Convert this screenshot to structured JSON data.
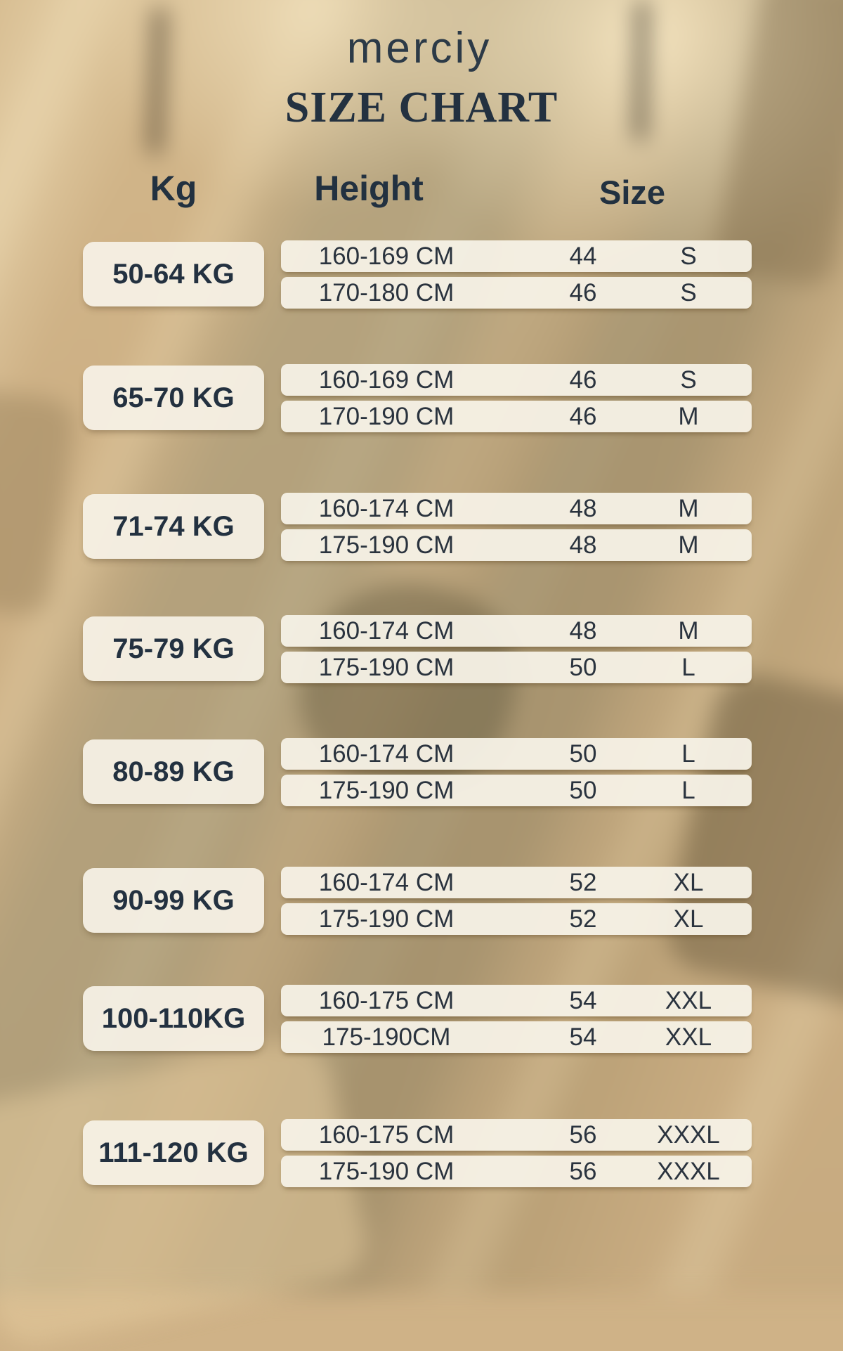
{
  "page": {
    "brand": "merciy",
    "title": "SIZE CHART"
  },
  "table": {
    "headers": {
      "kg": "Kg",
      "height": "Height",
      "size": "Size"
    },
    "groups": [
      {
        "kg": "50-64 KG",
        "rows": [
          {
            "height": "160-169 CM",
            "size_number": "44",
            "size_letter": "S"
          },
          {
            "height": "170-180 CM",
            "size_number": "46",
            "size_letter": "S"
          }
        ]
      },
      {
        "kg": "65-70 KG",
        "rows": [
          {
            "height": "160-169 CM",
            "size_number": "46",
            "size_letter": "S"
          },
          {
            "height": "170-190 CM",
            "size_number": "46",
            "size_letter": "M"
          }
        ]
      },
      {
        "kg": "71-74 KG",
        "rows": [
          {
            "height": "160-174 CM",
            "size_number": "48",
            "size_letter": "M"
          },
          {
            "height": "175-190 CM",
            "size_number": "48",
            "size_letter": "M"
          }
        ]
      },
      {
        "kg": "75-79 KG",
        "rows": [
          {
            "height": "160-174 CM",
            "size_number": "48",
            "size_letter": "M"
          },
          {
            "height": "175-190 CM",
            "size_number": "50",
            "size_letter": "L"
          }
        ]
      },
      {
        "kg": "80-89 KG",
        "rows": [
          {
            "height": "160-174 CM",
            "size_number": "50",
            "size_letter": "L"
          },
          {
            "height": "175-190 CM",
            "size_number": "50",
            "size_letter": "L"
          }
        ]
      },
      {
        "kg": "90-99 KG",
        "rows": [
          {
            "height": "160-174 CM",
            "size_number": "52",
            "size_letter": "XL"
          },
          {
            "height": "175-190 CM",
            "size_number": "52",
            "size_letter": "XL"
          }
        ]
      },
      {
        "kg": "100-110KG",
        "rows": [
          {
            "height": "160-175 CM",
            "size_number": "54",
            "size_letter": "XXL"
          },
          {
            "height": "175-190CM",
            "size_number": "54",
            "size_letter": "XXL"
          }
        ]
      },
      {
        "kg": "111-120 KG",
        "rows": [
          {
            "height": "160-175 CM",
            "size_number": "56",
            "size_letter": "XXXL"
          },
          {
            "height": "175-190 CM",
            "size_number": "56",
            "size_letter": "XXXL"
          }
        ]
      }
    ]
  },
  "colors": {
    "text_dark": "#26323F",
    "panel_cream": "#F4EFE2",
    "background_tan": "#CFB287"
  },
  "chart_data": {
    "type": "table",
    "title": "SIZE CHART",
    "brand": "merciy",
    "columns": [
      "Kg",
      "Height",
      "Size"
    ],
    "rows": [
      [
        "50-64 KG",
        "160-169 CM",
        44,
        "S"
      ],
      [
        "50-64 KG",
        "170-180 CM",
        46,
        "S"
      ],
      [
        "65-70 KG",
        "160-169 CM",
        46,
        "S"
      ],
      [
        "65-70 KG",
        "170-190 CM",
        46,
        "M"
      ],
      [
        "71-74 KG",
        "160-174 CM",
        48,
        "M"
      ],
      [
        "71-74 KG",
        "175-190 CM",
        48,
        "M"
      ],
      [
        "75-79 KG",
        "160-174 CM",
        48,
        "M"
      ],
      [
        "75-79 KG",
        "175-190 CM",
        50,
        "L"
      ],
      [
        "80-89 KG",
        "160-174 CM",
        50,
        "L"
      ],
      [
        "80-89 KG",
        "175-190 CM",
        50,
        "L"
      ],
      [
        "90-99 KG",
        "160-174 CM",
        52,
        "XL"
      ],
      [
        "90-99 KG",
        "175-190 CM",
        52,
        "XL"
      ],
      [
        "100-110KG",
        "160-175 CM",
        54,
        "XXL"
      ],
      [
        "100-110KG",
        "175-190CM",
        54,
        "XXL"
      ],
      [
        "111-120 KG",
        "160-175 CM",
        56,
        "XXXL"
      ],
      [
        "111-120 KG",
        "175-190 CM",
        56,
        "XXXL"
      ]
    ]
  }
}
